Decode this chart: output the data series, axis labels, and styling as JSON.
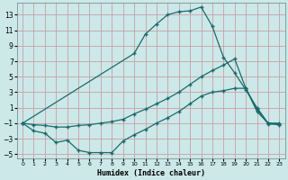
{
  "xlabel": "Humidex (Indice chaleur)",
  "bg_color": "#cce8e8",
  "grid_color": "#c8a0a8",
  "line_color": "#1a6b6b",
  "xlim": [
    -0.5,
    23.5
  ],
  "ylim": [
    -5.5,
    14.5
  ],
  "xticks": [
    0,
    1,
    2,
    3,
    4,
    5,
    6,
    7,
    8,
    9,
    10,
    11,
    12,
    13,
    14,
    15,
    16,
    17,
    18,
    19,
    20,
    21,
    22,
    23
  ],
  "yticks": [
    -5,
    -3,
    -1,
    1,
    3,
    5,
    7,
    9,
    11,
    13
  ],
  "ytick_labels": [
    "-5",
    "-3",
    "-1",
    "1",
    "3",
    "5",
    "7",
    "9",
    "11",
    "13"
  ],
  "line1_x": [
    0,
    10,
    11,
    12,
    13,
    14,
    15,
    16,
    17,
    18,
    19,
    20,
    21,
    22,
    23
  ],
  "line1_y": [
    -1.0,
    8.0,
    10.5,
    11.8,
    13.0,
    13.4,
    13.5,
    14.0,
    11.5,
    7.5,
    5.5,
    3.3,
    1.0,
    -1.0,
    -1.0
  ],
  "line2_x": [
    0,
    1,
    2,
    3,
    4,
    5,
    6,
    7,
    8,
    9,
    10,
    11,
    12,
    13,
    14,
    15,
    16,
    17,
    18,
    19,
    20,
    21,
    22,
    23
  ],
  "line2_y": [
    -1.0,
    -1.2,
    -1.3,
    -1.5,
    -1.5,
    -1.3,
    -1.2,
    -1.0,
    -0.8,
    -0.5,
    0.2,
    0.8,
    1.5,
    2.2,
    3.0,
    4.0,
    5.0,
    5.8,
    6.5,
    7.3,
    3.5,
    0.5,
    -1.0,
    -1.1
  ],
  "line3_x": [
    0,
    1,
    2,
    3,
    4,
    5,
    6,
    7,
    8,
    9,
    10,
    11,
    12,
    13,
    14,
    15,
    16,
    17,
    18,
    19,
    20,
    21,
    22,
    23
  ],
  "line3_y": [
    -1.0,
    -2.0,
    -2.3,
    -3.5,
    -3.2,
    -4.5,
    -4.8,
    -4.8,
    -4.8,
    -3.3,
    -2.5,
    -1.8,
    -1.0,
    -0.3,
    0.5,
    1.5,
    2.5,
    3.0,
    3.2,
    3.5,
    3.5,
    0.8,
    -1.1,
    -1.2
  ]
}
